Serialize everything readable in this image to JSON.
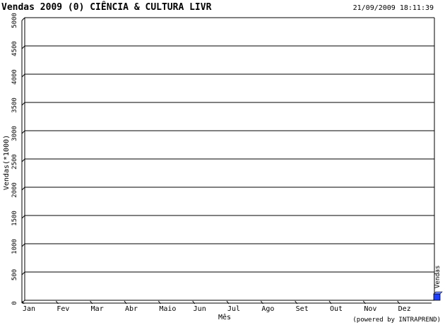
{
  "header": {
    "title": "Vendas 2009 (0) CIÊNCIA & CULTURA LIVR",
    "timestamp": "21/09/2009 18:11:39"
  },
  "footer": {
    "credit": "(powered by INTRAPREND)"
  },
  "chart_data": {
    "type": "bar",
    "categories": [
      "Jan",
      "Fev",
      "Mar",
      "Abr",
      "Maio",
      "Jun",
      "Jul",
      "Ago",
      "Set",
      "Out",
      "Nov",
      "Dez"
    ],
    "series": [
      {
        "name": "Vendas",
        "values": [
          0,
          0,
          0,
          0,
          0,
          0,
          0,
          0,
          0,
          0,
          0,
          0
        ],
        "color": "#1f3fff"
      }
    ],
    "xlabel": "Mês",
    "ylabel": "Vendas(*1000)",
    "ylim": [
      0,
      5000
    ],
    "yticks": [
      0,
      500,
      1000,
      1500,
      2000,
      2500,
      3000,
      3500,
      4000,
      4500,
      5000
    ],
    "grid": true,
    "legend_position": "right"
  }
}
